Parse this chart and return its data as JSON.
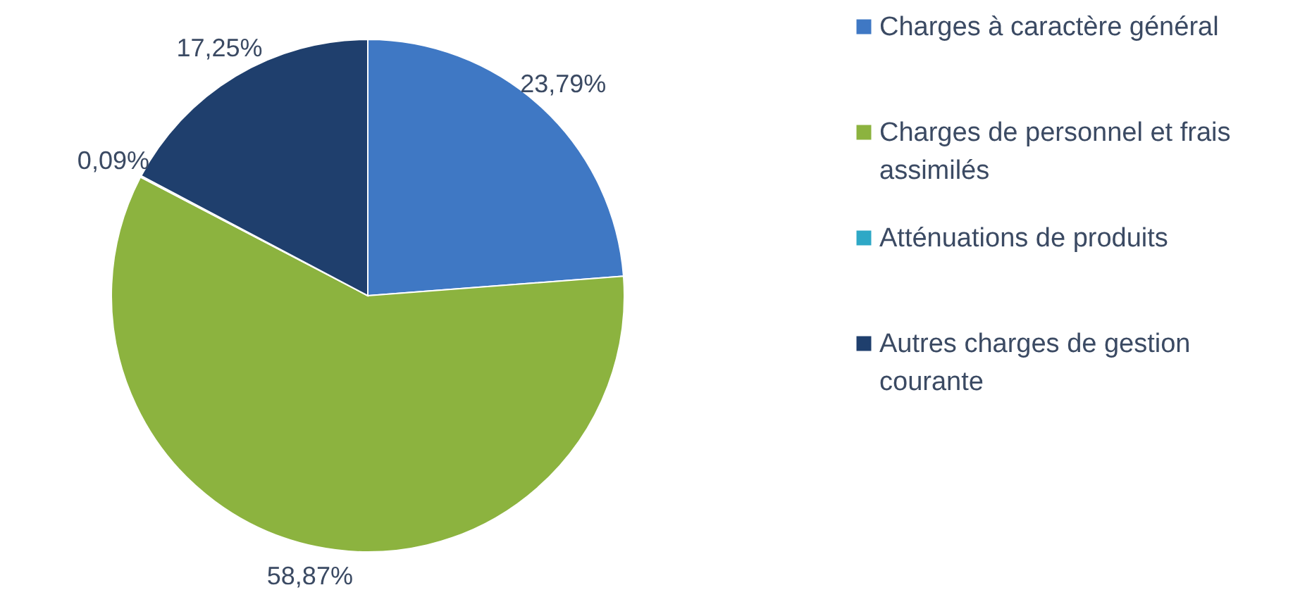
{
  "chart_data": {
    "type": "pie",
    "categories": [
      "Charges à caractère général",
      "Charges de personnel et frais assimilés",
      "Atténuations de produits",
      "Autres charges de gestion courante"
    ],
    "values": [
      23.79,
      58.87,
      0.09,
      17.25
    ],
    "colors": [
      "#3f78c4",
      "#8cb33f",
      "#2ea8c6",
      "#1f3f6d"
    ],
    "value_labels": [
      "23,79%",
      "58,87%",
      "0,09%",
      "17,25%"
    ],
    "legend": "right"
  }
}
